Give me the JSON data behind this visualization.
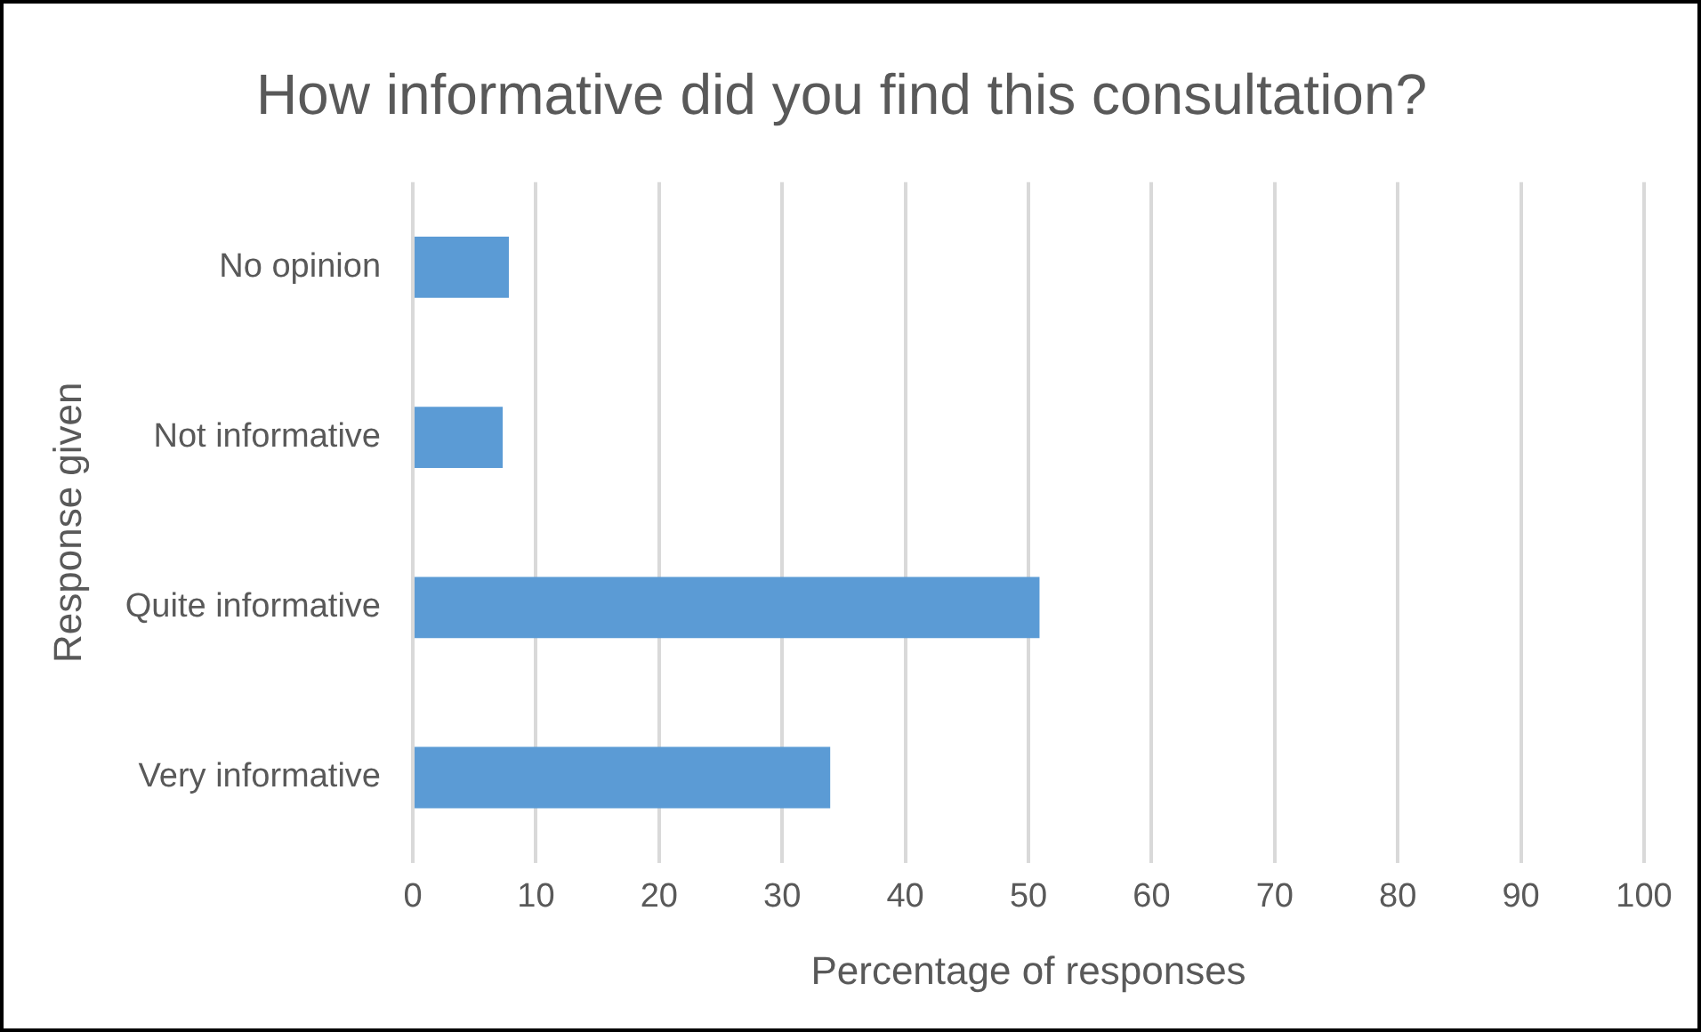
{
  "chart_data": {
    "type": "bar",
    "orientation": "horizontal",
    "title": "How informative did you find this consultation?",
    "xlabel": "Percentage of responses",
    "ylabel": "Response given",
    "categories": [
      "No opinion",
      "Not informative",
      "Quite informative",
      "Very informative"
    ],
    "values": [
      7.8,
      7.3,
      50.9,
      33.9
    ],
    "color": "#5b9bd5",
    "xlim": [
      0,
      100
    ],
    "xticks": [
      0,
      10,
      20,
      30,
      40,
      50,
      60,
      70,
      80,
      90,
      100
    ],
    "grid": "x",
    "legend": false
  }
}
